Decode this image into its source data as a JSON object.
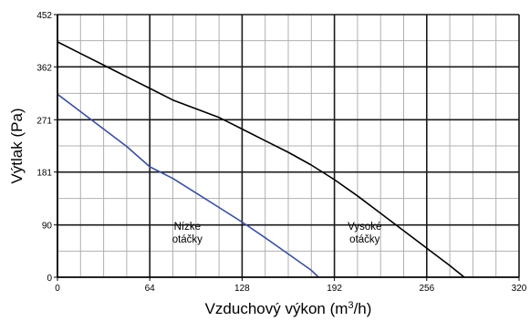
{
  "chart_data": {
    "type": "line",
    "xlabel": {
      "main": "Vzduchový výkon (m",
      "sup": "3",
      "tail": "/h)"
    },
    "ylabel": "Výtlak (Pa)",
    "xlim": [
      0,
      320
    ],
    "ylim": [
      0,
      452
    ],
    "xticks": [
      0,
      64,
      128,
      192,
      256,
      320
    ],
    "xtick_labels": [
      "0",
      "64",
      "128",
      "192",
      "256",
      "320"
    ],
    "yticks": [
      0,
      90,
      181,
      271,
      362,
      452
    ],
    "ytick_labels": [
      "0",
      "90",
      "181",
      "271",
      "362",
      "452"
    ],
    "grid": true,
    "grid_color": "#b0b0b0",
    "major_grid_color": "#1a1a1a",
    "series": [
      {
        "color": "#000000",
        "x": [
          0,
          16,
          32,
          48,
          64,
          80,
          96,
          112,
          128,
          144,
          160,
          176,
          192,
          208,
          224,
          240,
          256,
          272,
          282
        ],
        "y": [
          405,
          385,
          365,
          345,
          325,
          305,
          290,
          275,
          255,
          235,
          215,
          193,
          168,
          140,
          110,
          80,
          50,
          20,
          0
        ]
      },
      {
        "color": "#3a4fa0",
        "x": [
          0,
          16,
          32,
          48,
          64,
          80,
          96,
          112,
          128,
          144,
          160,
          176,
          181
        ],
        "y": [
          315,
          285,
          255,
          225,
          190,
          170,
          145,
          120,
          95,
          68,
          40,
          12,
          0
        ]
      }
    ],
    "annotations": [
      {
        "lines": [
          "Nízke",
          "otáčky"
        ],
        "x": 90,
        "y": 82
      },
      {
        "lines": [
          "Vysoké",
          "otáčky"
        ],
        "x": 213,
        "y": 82
      }
    ]
  }
}
